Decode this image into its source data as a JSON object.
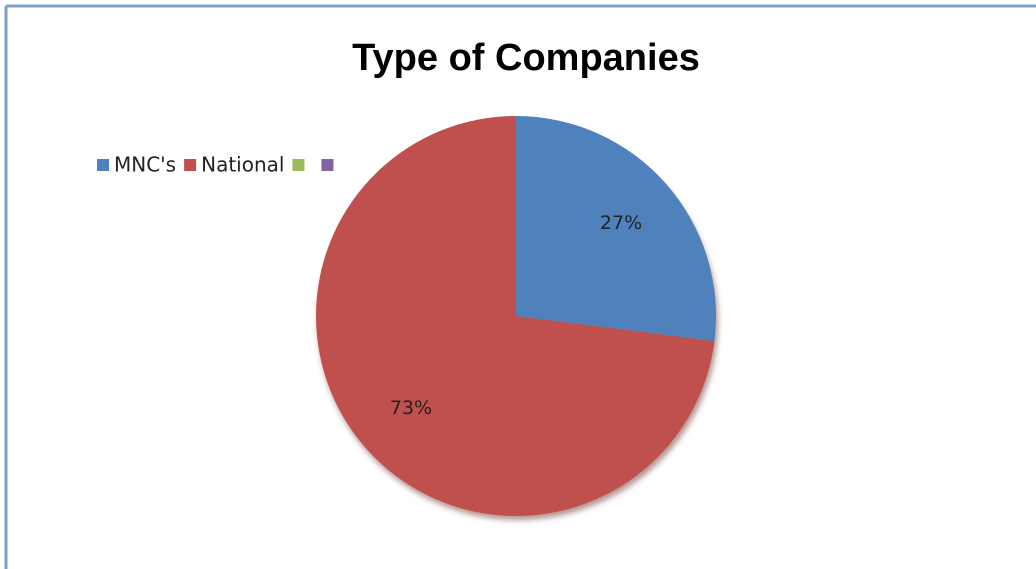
{
  "chart_data": {
    "type": "pie",
    "title": "Type of Companies",
    "categories": [
      "MNC's",
      "National",
      null,
      null
    ],
    "values": [
      27,
      73,
      null,
      null
    ],
    "value_labels": [
      "27%",
      "73%",
      null,
      null
    ],
    "colors": [
      "#4f81bd",
      "#c0504d",
      "#9bbb59",
      "#8064a2"
    ]
  }
}
